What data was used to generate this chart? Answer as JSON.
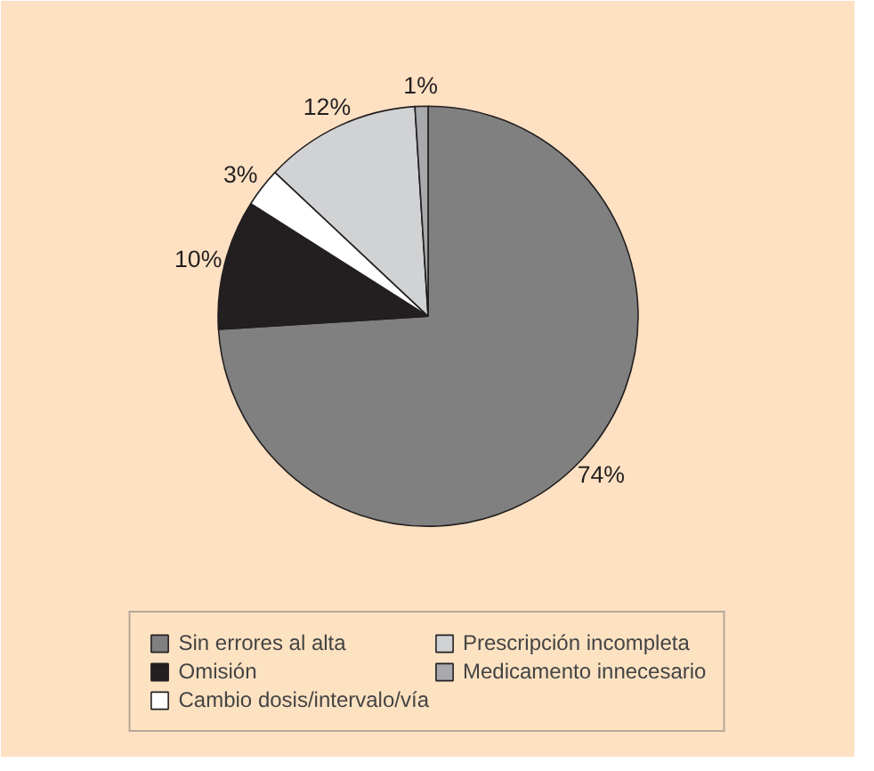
{
  "chart_data": {
    "type": "pie",
    "categories": [
      "Sin errores al alta",
      "Omisión",
      "Cambio dosis/intervalo/vía",
      "Prescripción incompleta",
      "Medicamento innecesario"
    ],
    "values": [
      74,
      10,
      3,
      12,
      1
    ],
    "value_labels": [
      "74%",
      "10%",
      "3%",
      "12%",
      "1%"
    ],
    "colors": [
      "#808080",
      "#231f20",
      "#ffffff",
      "#d1d2d4",
      "#a7a9ac"
    ],
    "legend": "bottom"
  }
}
